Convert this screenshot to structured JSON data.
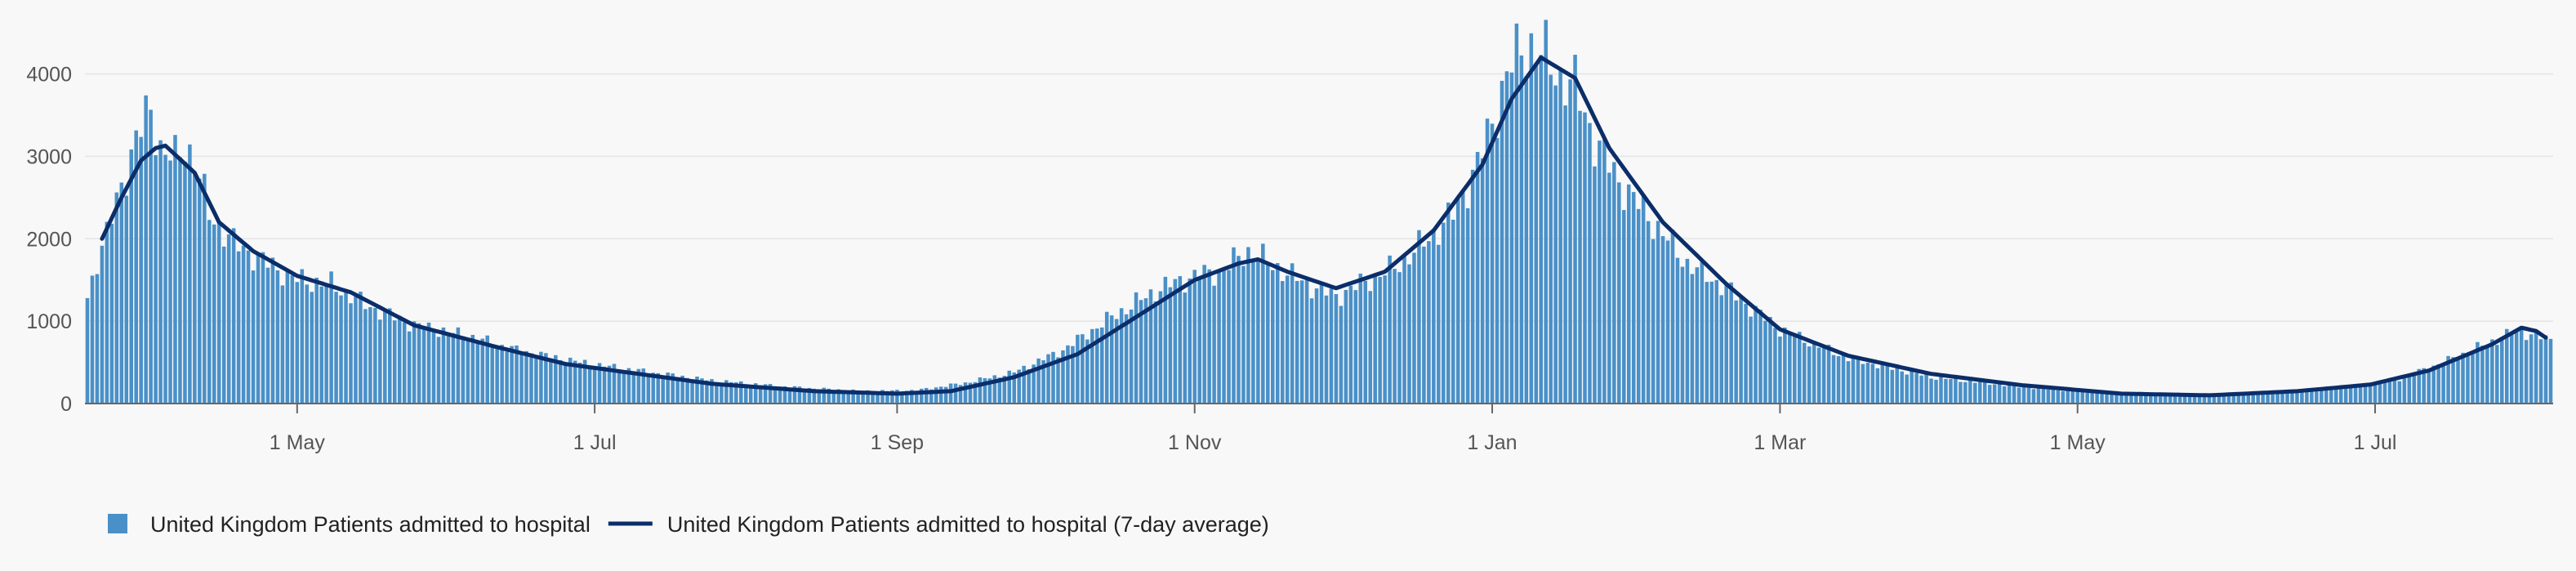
{
  "chart_data": {
    "type": "bar",
    "x_range": [
      "2020-03-19",
      "2021-08-06"
    ],
    "ylim": [
      0,
      4600
    ],
    "y_ticks": [
      0,
      1000,
      2000,
      3000,
      4000
    ],
    "y_tick_labels": [
      "0",
      "1000",
      "2000",
      "3000",
      "4000"
    ],
    "x_ticks": [
      {
        "date": "2020-05-01",
        "label": "1 May"
      },
      {
        "date": "2020-07-01",
        "label": "1 Jul"
      },
      {
        "date": "2020-09-01",
        "label": "1 Sep"
      },
      {
        "date": "2020-11-01",
        "label": "1 Nov"
      },
      {
        "date": "2021-01-01",
        "label": "1 Jan"
      },
      {
        "date": "2021-03-01",
        "label": "1 Mar"
      },
      {
        "date": "2021-05-01",
        "label": "1 May"
      },
      {
        "date": "2021-07-01",
        "label": "1 Jul"
      }
    ],
    "grid": true,
    "legend_position": "bottom-left",
    "colors": {
      "bars": "#4a90c8",
      "line": "#0b2e6a",
      "grid": "#e4e4e4",
      "axis": "#666666"
    },
    "series": [
      {
        "name": "United Kingdom Patients admitted to hospital",
        "kind": "bar",
        "keypoints": [
          [
            "2020-03-19",
            1280
          ],
          [
            "2020-03-21",
            1750
          ],
          [
            "2020-03-23",
            2050
          ],
          [
            "2020-03-26",
            2650
          ],
          [
            "2020-03-29",
            3200
          ],
          [
            "2020-04-01",
            3580
          ],
          [
            "2020-04-03",
            3100
          ],
          [
            "2020-04-06",
            2950
          ],
          [
            "2020-04-08",
            3150
          ],
          [
            "2020-04-10",
            2950
          ],
          [
            "2020-04-13",
            2300
          ],
          [
            "2020-04-18",
            1950
          ],
          [
            "2020-04-25",
            1700
          ],
          [
            "2020-05-01",
            1500
          ],
          [
            "2020-05-08",
            1450
          ],
          [
            "2020-05-15",
            1200
          ],
          [
            "2020-05-25",
            950
          ],
          [
            "2020-06-05",
            820
          ],
          [
            "2020-06-15",
            650
          ],
          [
            "2020-06-28",
            500
          ],
          [
            "2020-07-10",
            400
          ],
          [
            "2020-07-25",
            280
          ],
          [
            "2020-08-10",
            200
          ],
          [
            "2020-08-25",
            150
          ],
          [
            "2020-09-05",
            160
          ],
          [
            "2020-09-15",
            250
          ],
          [
            "2020-09-25",
            380
          ],
          [
            "2020-10-05",
            650
          ],
          [
            "2020-10-15",
            1050
          ],
          [
            "2020-10-25",
            1400
          ],
          [
            "2020-11-01",
            1550
          ],
          [
            "2020-11-06",
            1600
          ],
          [
            "2020-11-12",
            1850
          ],
          [
            "2020-11-18",
            1650
          ],
          [
            "2020-11-24",
            1450
          ],
          [
            "2020-11-30",
            1300
          ],
          [
            "2020-12-05",
            1450
          ],
          [
            "2020-12-12",
            1650
          ],
          [
            "2020-12-18",
            1950
          ],
          [
            "2020-12-24",
            2300
          ],
          [
            "2020-12-29",
            2900
          ],
          [
            "2021-01-01",
            3400
          ],
          [
            "2021-01-04",
            4000
          ],
          [
            "2021-01-07",
            4300
          ],
          [
            "2021-01-09",
            4350
          ],
          [
            "2021-01-12",
            4200
          ],
          [
            "2021-01-15",
            3950
          ],
          [
            "2021-01-18",
            3850
          ],
          [
            "2021-01-22",
            3200
          ],
          [
            "2021-01-27",
            2700
          ],
          [
            "2021-02-03",
            2200
          ],
          [
            "2021-02-10",
            1700
          ],
          [
            "2021-02-18",
            1400
          ],
          [
            "2021-03-01",
            900
          ],
          [
            "2021-03-15",
            550
          ],
          [
            "2021-04-01",
            320
          ],
          [
            "2021-04-20",
            200
          ],
          [
            "2021-05-10",
            110
          ],
          [
            "2021-05-28",
            95
          ],
          [
            "2021-06-10",
            130
          ],
          [
            "2021-06-25",
            200
          ],
          [
            "2021-07-05",
            280
          ],
          [
            "2021-07-15",
            500
          ],
          [
            "2021-07-25",
            750
          ],
          [
            "2021-07-30",
            880
          ],
          [
            "2021-08-02",
            850
          ],
          [
            "2021-08-06",
            760
          ]
        ]
      },
      {
        "name": "United Kingdom Patients admitted to hospital (7-day average)",
        "kind": "line",
        "keypoints": [
          [
            "2020-03-22",
            2000
          ],
          [
            "2020-03-26",
            2500
          ],
          [
            "2020-03-30",
            2950
          ],
          [
            "2020-04-02",
            3100
          ],
          [
            "2020-04-04",
            3130
          ],
          [
            "2020-04-10",
            2800
          ],
          [
            "2020-04-15",
            2200
          ],
          [
            "2020-04-22",
            1850
          ],
          [
            "2020-05-01",
            1550
          ],
          [
            "2020-05-12",
            1350
          ],
          [
            "2020-05-25",
            950
          ],
          [
            "2020-06-10",
            700
          ],
          [
            "2020-06-25",
            480
          ],
          [
            "2020-07-10",
            360
          ],
          [
            "2020-07-25",
            240
          ],
          [
            "2020-08-15",
            150
          ],
          [
            "2020-09-01",
            120
          ],
          [
            "2020-09-12",
            150
          ],
          [
            "2020-09-25",
            320
          ],
          [
            "2020-10-08",
            600
          ],
          [
            "2020-10-20",
            1050
          ],
          [
            "2020-11-01",
            1500
          ],
          [
            "2020-11-10",
            1700
          ],
          [
            "2020-11-14",
            1750
          ],
          [
            "2020-11-20",
            1600
          ],
          [
            "2020-11-30",
            1400
          ],
          [
            "2020-12-10",
            1600
          ],
          [
            "2020-12-20",
            2100
          ],
          [
            "2020-12-30",
            2900
          ],
          [
            "2021-01-05",
            3700
          ],
          [
            "2021-01-11",
            4200
          ],
          [
            "2021-01-18",
            3950
          ],
          [
            "2021-01-25",
            3100
          ],
          [
            "2021-02-05",
            2200
          ],
          [
            "2021-02-18",
            1450
          ],
          [
            "2021-03-01",
            900
          ],
          [
            "2021-03-15",
            580
          ],
          [
            "2021-04-01",
            360
          ],
          [
            "2021-04-20",
            220
          ],
          [
            "2021-05-10",
            120
          ],
          [
            "2021-05-28",
            100
          ],
          [
            "2021-06-15",
            150
          ],
          [
            "2021-06-30",
            230
          ],
          [
            "2021-07-12",
            400
          ],
          [
            "2021-07-25",
            720
          ],
          [
            "2021-07-31",
            920
          ],
          [
            "2021-08-03",
            880
          ],
          [
            "2021-08-05",
            800
          ]
        ]
      }
    ]
  }
}
